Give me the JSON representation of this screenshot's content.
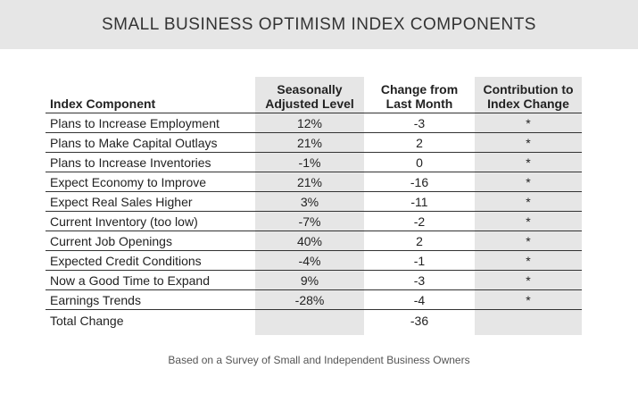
{
  "title": "SMALL BUSINESS OPTIMISM INDEX COMPONENTS",
  "headers": {
    "component": "Index Component",
    "level_line1": "Seasonally",
    "level_line2": "Adjusted Level",
    "change_line1": "Change from",
    "change_line2": "Last Month",
    "contrib_line1": "Contribution to",
    "contrib_line2": "Index Change"
  },
  "rows": [
    {
      "component": "Plans to Increase Employment",
      "level": "12%",
      "change": "-3",
      "contribution": "*"
    },
    {
      "component": "Plans to Make Capital Outlays",
      "level": "21%",
      "change": "2",
      "contribution": "*"
    },
    {
      "component": "Plans to Increase Inventories",
      "level": "-1%",
      "change": "0",
      "contribution": "*"
    },
    {
      "component": "Expect Economy to Improve",
      "level": "21%",
      "change": "-16",
      "contribution": "*"
    },
    {
      "component": "Expect Real Sales Higher",
      "level": "3%",
      "change": "-11",
      "contribution": "*"
    },
    {
      "component": "Current Inventory (too low)",
      "level": "-7%",
      "change": "-2",
      "contribution": "*"
    },
    {
      "component": "Current Job Openings",
      "level": "40%",
      "change": "2",
      "contribution": "*"
    },
    {
      "component": "Expected Credit Conditions",
      "level": "-4%",
      "change": "-1",
      "contribution": "*"
    },
    {
      "component": "Now a Good Time to Expand",
      "level": "9%",
      "change": "-3",
      "contribution": "*"
    },
    {
      "component": "Earnings Trends",
      "level": "-28%",
      "change": "-4",
      "contribution": "*"
    }
  ],
  "total": {
    "label": "Total Change",
    "change": "-36"
  },
  "footnote": "Based on a Survey of Small and Independent Business Owners",
  "colors": {
    "band": "#e6e6e6",
    "rule": "#333333",
    "text": "#222222"
  }
}
